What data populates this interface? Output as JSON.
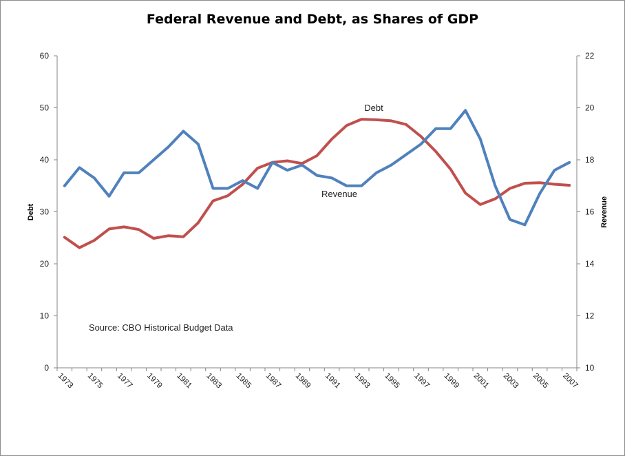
{
  "chart_data": {
    "type": "line",
    "title": "Federal Revenue and Debt, as Shares of GDP",
    "annotation": "Source: CBO Historical Budget Data",
    "x_tick_labels": [
      "1973",
      "1975",
      "1977",
      "1979",
      "1981",
      "1983",
      "1985",
      "1987",
      "1989",
      "1991",
      "1993",
      "1995",
      "1997",
      "1999",
      "2001",
      "2003",
      "2005",
      "2007"
    ],
    "x": [
      1973,
      1974,
      1975,
      1976,
      1977,
      1978,
      1979,
      1980,
      1981,
      1982,
      1983,
      1984,
      1985,
      1986,
      1987,
      1988,
      1989,
      1990,
      1991,
      1992,
      1993,
      1994,
      1995,
      1996,
      1997,
      1998,
      1999,
      2000,
      2001,
      2002,
      2003,
      2004,
      2005,
      2006,
      2007
    ],
    "xlim": [
      1972.5,
      2007.5
    ],
    "y_left": {
      "label": "Debt",
      "ylim": [
        0,
        60
      ],
      "ticks": [
        "0",
        "10",
        "20",
        "30",
        "40",
        "50",
        "60"
      ]
    },
    "y_right": {
      "label": "Revenue",
      "ylim": [
        10,
        22
      ],
      "ticks": [
        "10",
        "12",
        "14",
        "16",
        "18",
        "20",
        "22"
      ]
    },
    "grid": false,
    "series": [
      {
        "name": "Debt",
        "axis": "left",
        "color": "#C0504D",
        "values": [
          25.1,
          23.1,
          24.5,
          26.7,
          27.1,
          26.6,
          24.9,
          25.4,
          25.2,
          27.9,
          32.1,
          33.1,
          35.3,
          38.4,
          39.5,
          39.8,
          39.3,
          40.8,
          44.0,
          46.6,
          47.8,
          47.7,
          47.5,
          46.8,
          44.5,
          41.6,
          38.2,
          33.6,
          31.4,
          32.5,
          34.5,
          35.5,
          35.6,
          35.3,
          35.1
        ]
      },
      {
        "name": "Revenue",
        "axis": "right",
        "color": "#4F81BD",
        "values": [
          17.0,
          17.7,
          17.3,
          16.6,
          17.5,
          17.5,
          18.0,
          18.5,
          19.1,
          18.6,
          16.9,
          16.9,
          17.2,
          16.9,
          17.9,
          17.6,
          17.8,
          17.4,
          17.3,
          17.0,
          17.0,
          17.5,
          17.8,
          18.2,
          18.6,
          19.2,
          19.2,
          19.9,
          18.8,
          17.0,
          15.7,
          15.5,
          16.7,
          17.6,
          17.9
        ]
      }
    ],
    "series_labels": [
      {
        "text": "Debt",
        "series": "Debt"
      },
      {
        "text": "Revenue",
        "series": "Revenue"
      }
    ]
  }
}
